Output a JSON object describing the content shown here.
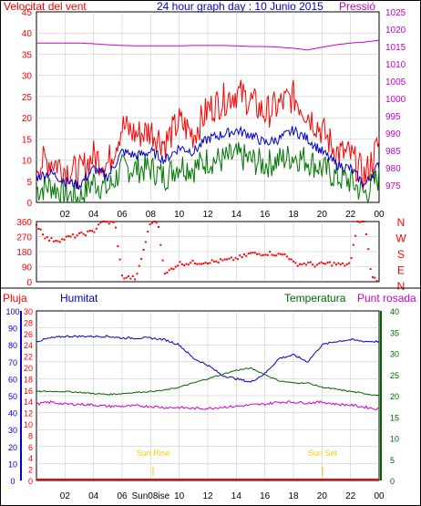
{
  "header": {
    "title": "24 hour graph day : 10 Junio 2015",
    "wind_label": "Velocitat del vent",
    "pressure_label": "Pressió"
  },
  "bottom_header": {
    "rain_label": "Pluja",
    "humidity_label": "Humitat",
    "temperature_label": "Temperatura",
    "dewpoint_label": "Punt rosada"
  },
  "sun": {
    "rise_label": "Sun Rise",
    "set_label": "Sun Set",
    "x_marker_label": "Sun08ise"
  },
  "colors": {
    "wind_gust": "#ff0000",
    "wind_avg": "#0000cc",
    "wind_min": "#007700",
    "pressure": "#cc00cc",
    "direction": "#ff0000",
    "rain": "#ff0000",
    "humidity": "#0000cc",
    "temperature": "#006600",
    "dewpoint": "#cc00cc",
    "sun_marker": "#ffcc00",
    "grid": "#c0c0c0"
  },
  "chart_data": [
    {
      "type": "line",
      "title": "24 hour graph day : 10 Junio 2015",
      "x_ticks": [
        "02",
        "04",
        "06",
        "08",
        "10",
        "12",
        "14",
        "16",
        "18",
        "20",
        "22",
        "00"
      ],
      "left_axis": {
        "label": "Velocitat del vent",
        "ylim": [
          0,
          45
        ],
        "ticks": [
          0,
          5,
          10,
          15,
          20,
          25,
          30,
          35,
          40,
          45
        ]
      },
      "right_axis": {
        "label": "Pressió",
        "ylim": [
          970,
          1025
        ],
        "ticks": [
          975,
          980,
          985,
          990,
          995,
          1000,
          1005,
          1010,
          1015,
          1020,
          1025
        ]
      },
      "x": [
        0,
        1,
        2,
        3,
        4,
        5,
        6,
        7,
        8,
        9,
        10,
        11,
        12,
        13,
        14,
        15,
        16,
        17,
        18,
        19,
        20,
        21,
        22,
        23,
        24
      ],
      "series": [
        {
          "name": "gust",
          "axis": "left",
          "values": [
            9,
            10,
            8,
            7,
            11,
            9,
            18,
            16,
            17,
            14,
            19,
            16,
            22,
            24,
            26,
            24,
            21,
            23,
            25,
            21,
            17,
            12,
            11,
            6,
            14
          ]
        },
        {
          "name": "average",
          "axis": "left",
          "values": [
            6,
            7,
            5,
            4,
            8,
            6,
            12,
            11,
            12,
            10,
            13,
            12,
            15,
            16,
            17,
            16,
            14,
            15,
            17,
            15,
            12,
            9,
            8,
            4,
            9
          ]
        },
        {
          "name": "minimum",
          "axis": "left",
          "values": [
            3,
            4,
            2,
            1,
            5,
            3,
            8,
            8,
            8,
            6,
            9,
            8,
            10,
            10,
            11,
            10,
            9,
            10,
            11,
            10,
            8,
            6,
            5,
            2,
            6
          ]
        },
        {
          "name": "pressure",
          "axis": "right",
          "values": [
            1016,
            1016,
            1016,
            1016,
            1015.8,
            1015.5,
            1015.3,
            1015.2,
            1015.2,
            1015.2,
            1015.2,
            1015.3,
            1015.3,
            1015.3,
            1015.2,
            1015,
            1015,
            1014.8,
            1014.5,
            1014,
            1014.8,
            1015.5,
            1016,
            1016.3,
            1016.8
          ]
        }
      ]
    },
    {
      "type": "scatter",
      "title": "",
      "x_ticks": [],
      "y_ticks_left": [
        0,
        90,
        180,
        270,
        360
      ],
      "y_ticks_right": [
        "N",
        "W",
        "S",
        "E",
        "N"
      ],
      "ylim": [
        0,
        360
      ],
      "x": [
        0,
        0.2,
        0.4,
        0.6,
        0.8,
        1,
        1.2,
        1.5,
        1.8,
        2,
        2.5,
        3,
        3.5,
        4,
        4.5,
        5,
        5.5,
        6,
        6.5,
        7,
        8,
        8.5,
        9,
        9.5,
        10,
        10.5,
        11,
        11.5,
        12,
        12.5,
        13,
        13.5,
        14,
        14.5,
        15,
        15.5,
        16,
        16.5,
        17,
        17.5,
        18,
        18.5,
        19,
        19.5,
        20,
        20.5,
        21,
        21.5,
        22,
        22.5,
        23,
        23.5,
        24
      ],
      "series": [
        {
          "name": "direction",
          "values": [
            340,
            320,
            300,
            270,
            255,
            250,
            250,
            250,
            250,
            260,
            270,
            280,
            290,
            300,
            360,
            355,
            350,
            30,
            25,
            20,
            360,
            360,
            40,
            80,
            110,
            110,
            115,
            115,
            120,
            120,
            125,
            130,
            140,
            150,
            170,
            165,
            170,
            170,
            160,
            165,
            110,
            105,
            110,
            100,
            105,
            110,
            105,
            100,
            110,
            360,
            360,
            20,
            15
          ]
        }
      ]
    },
    {
      "type": "line",
      "title": "",
      "x_ticks": [
        "02",
        "04",
        "06",
        "08",
        "10",
        "12",
        "14",
        "16",
        "18",
        "20",
        "22",
        "00"
      ],
      "left_axis_humidity": {
        "label": "Humitat",
        "ylim": [
          0,
          100
        ],
        "ticks": [
          0,
          10,
          20,
          30,
          40,
          50,
          60,
          70,
          80,
          90,
          100
        ]
      },
      "left_axis_rain": {
        "label": "Pluja",
        "ylim": [
          0,
          30
        ],
        "ticks": [
          0,
          2,
          4,
          6,
          8,
          10,
          12,
          14,
          16,
          18,
          20,
          22,
          24,
          26,
          28,
          30
        ]
      },
      "right_axis": {
        "label": "Temperatura",
        "ylim": [
          0,
          40
        ],
        "ticks": [
          0,
          5,
          10,
          15,
          20,
          25,
          30,
          35,
          40
        ]
      },
      "x": [
        0,
        1,
        2,
        3,
        4,
        5,
        6,
        7,
        8,
        9,
        10,
        11,
        12,
        13,
        14,
        15,
        16,
        17,
        18,
        19,
        20,
        21,
        22,
        23,
        24
      ],
      "series": [
        {
          "name": "humidity",
          "axis": "left_humidity",
          "values": [
            82,
            84,
            85,
            85,
            85,
            85,
            84,
            84,
            84,
            83,
            80,
            72,
            68,
            62,
            60,
            58,
            63,
            72,
            74,
            70,
            80,
            82,
            83,
            82,
            82
          ]
        },
        {
          "name": "rain",
          "axis": "left_rain",
          "values": [
            0,
            0,
            0,
            0,
            0,
            0,
            0,
            0,
            0,
            0,
            0,
            0,
            0,
            0,
            0,
            0,
            0,
            0,
            0,
            0,
            0,
            0,
            0,
            0,
            0
          ]
        },
        {
          "name": "temperature",
          "axis": "right",
          "values": [
            21,
            21,
            21,
            20.8,
            20.5,
            20.3,
            20.5,
            20.8,
            21,
            21.3,
            22,
            23,
            24,
            25,
            26,
            26.5,
            25,
            23.5,
            23,
            23,
            22,
            21.5,
            21,
            20.5,
            20
          ]
        },
        {
          "name": "dewpoint",
          "axis": "right",
          "values": [
            18,
            18.5,
            18,
            18,
            17.8,
            17.5,
            17.5,
            17.6,
            17.5,
            17.2,
            17.2,
            17,
            17,
            17.3,
            17.5,
            17.8,
            18,
            18.5,
            18.5,
            18.3,
            18.5,
            18,
            17.8,
            17.3,
            16.8
          ]
        }
      ]
    }
  ]
}
